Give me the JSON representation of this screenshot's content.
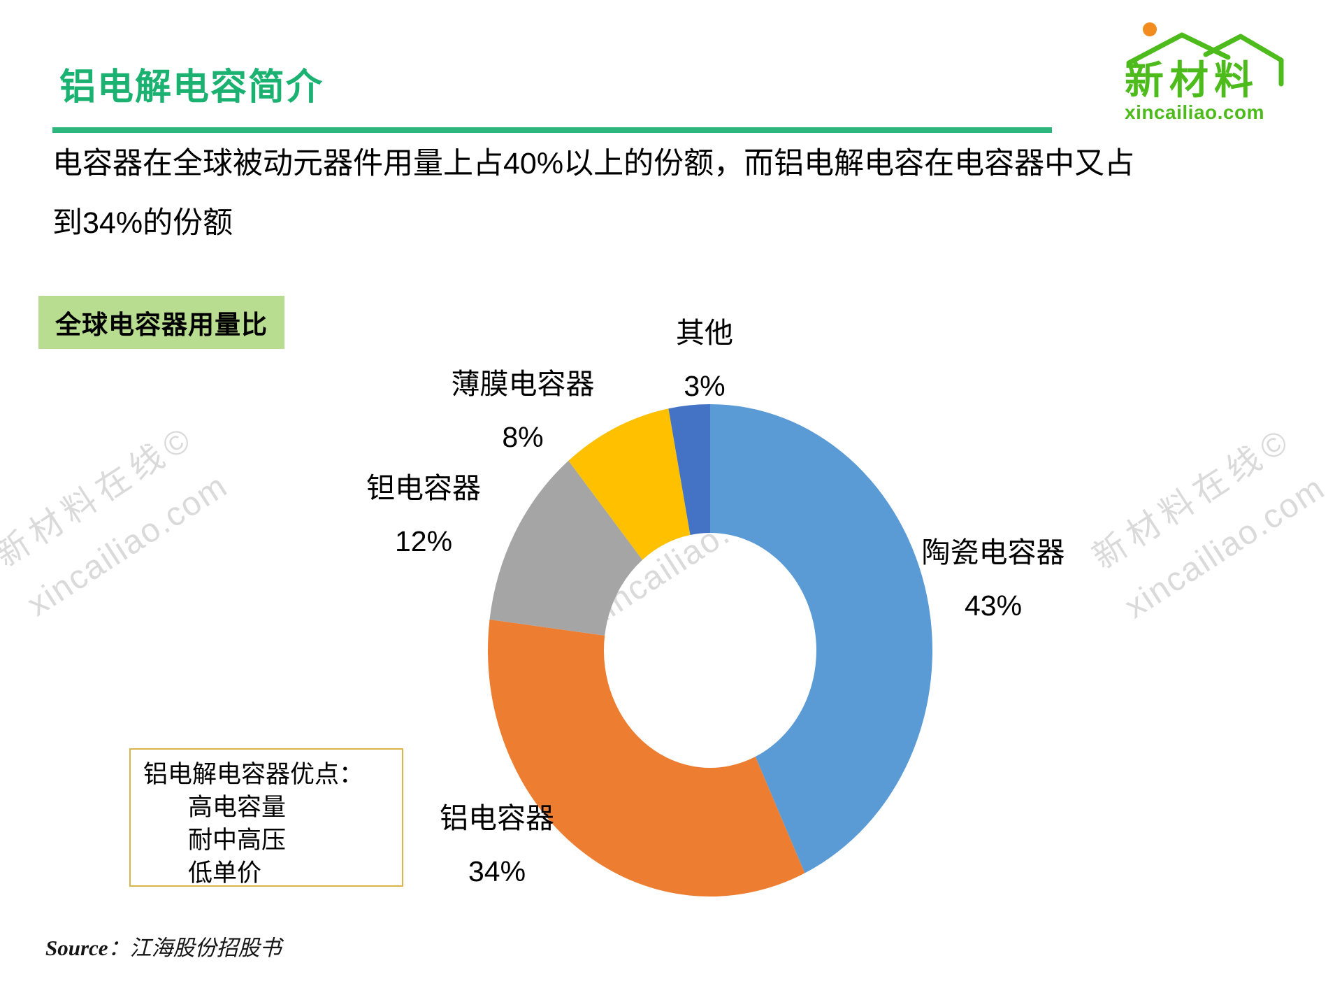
{
  "title": "铝电解电容简介",
  "logo": {
    "brand": "新材料",
    "domain": "xincailiao.com",
    "green": "#4DBB1C",
    "orange": "#F28C1E"
  },
  "intro": {
    "line1": "电容器在全球被动元器件用量上占40%以上的份额，而铝电解电容在电容器中又占",
    "line2": "到34%的份额"
  },
  "section_tag": "全球电容器用量比",
  "chart_data": {
    "type": "pie",
    "subtype": "donut",
    "title": "全球电容器用量比",
    "start_angle_deg": 0,
    "direction": "clockwise",
    "labels_position": "outside",
    "points": [
      {
        "name": "陶瓷电容器",
        "value": 43,
        "pct_label": "43%",
        "color": "#5B9BD5"
      },
      {
        "name": "铝电容器",
        "value": 34,
        "pct_label": "34%",
        "color": "#ED7D31"
      },
      {
        "name": "钽电容器",
        "value": 12,
        "pct_label": "12%",
        "color": "#A5A5A5"
      },
      {
        "name": "薄膜电容器",
        "value": 8,
        "pct_label": "8%",
        "color": "#FFC000"
      },
      {
        "name": "其他",
        "value": 3,
        "pct_label": "3%",
        "color": "#4472C4"
      }
    ]
  },
  "advantages": {
    "title": "铝电解电容器优点：",
    "items": [
      "高电容量",
      "耐中高压",
      "低单价"
    ]
  },
  "source": {
    "label": "Source",
    "text": "：江海股份招股书"
  },
  "watermark": {
    "line1": "新材料在线©",
    "line2": "xincailiao.com"
  }
}
